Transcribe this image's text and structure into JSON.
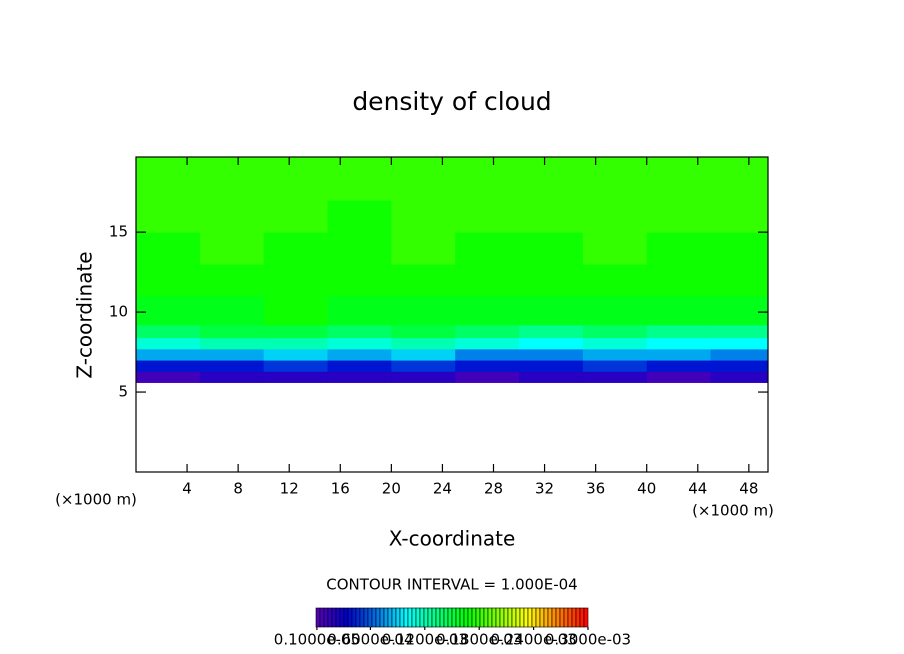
{
  "chart_data": {
    "type": "heatmap",
    "title": "density of cloud",
    "x_label": "X-coordinate",
    "y_label": "Z-coordinate",
    "x_unit": "(×1000 m)",
    "y_unit": "(×1000 m)",
    "contour_interval": "CONTOUR INTERVAL = 1.000E-04",
    "xlim": [
      0,
      49.5
    ],
    "ylim": [
      0,
      19.7
    ],
    "xticks": [
      4,
      8,
      12,
      16,
      20,
      24,
      28,
      32,
      36,
      40,
      44,
      48
    ],
    "yticks": [
      5,
      10,
      15
    ],
    "x_edges": [
      0,
      5,
      10,
      15,
      20,
      25,
      30,
      35,
      40,
      45,
      49.5
    ],
    "z_edges": [
      5.6,
      6.3,
      7,
      7.7,
      8.4,
      9.2,
      11,
      13,
      15,
      17,
      19.7
    ],
    "values": [
      [
        1e-05,
        2e-05,
        2e-05,
        2e-05,
        2e-05,
        1e-05,
        2e-05,
        2e-05,
        1e-05,
        2e-05
      ],
      [
        4e-05,
        4e-05,
        5e-05,
        4e-05,
        5e-05,
        4e-05,
        4e-05,
        5e-05,
        4e-05,
        4e-05
      ],
      [
        8e-05,
        8e-05,
        9e-05,
        8e-05,
        9e-05,
        7e-05,
        7e-05,
        8e-05,
        8e-05,
        7e-05
      ],
      [
        0.00011,
        0.00012,
        0.00012,
        0.00011,
        0.00012,
        0.00011,
        0.0001,
        0.00011,
        0.0001,
        0.0001
      ],
      [
        0.00014,
        0.00015,
        0.00015,
        0.00014,
        0.00015,
        0.00014,
        0.00013,
        0.00014,
        0.00013,
        0.00013
      ],
      [
        0.00016,
        0.00016,
        0.00017,
        0.00016,
        0.00016,
        0.00016,
        0.00016,
        0.00016,
        0.00016,
        0.00016
      ],
      [
        0.00017,
        0.00017,
        0.00017,
        0.00017,
        0.00017,
        0.00017,
        0.00017,
        0.00017,
        0.00017,
        0.00017
      ],
      [
        0.00017,
        0.00018,
        0.00017,
        0.00017,
        0.00018,
        0.00017,
        0.00017,
        0.00018,
        0.00017,
        0.00017
      ],
      [
        0.00018,
        0.00018,
        0.00018,
        0.00017,
        0.00018,
        0.00018,
        0.00018,
        0.00018,
        0.00018,
        0.00018
      ],
      [
        0.00018,
        0.00018,
        0.00018,
        0.00018,
        0.00018,
        0.00018,
        0.00018,
        0.00018,
        0.00018,
        0.00018
      ]
    ],
    "clim": [
      0,
      0.0003
    ],
    "colorbar_ticks": [
      {
        "value": 1e-06,
        "label": "0.1000e-05"
      },
      {
        "value": 6e-05,
        "label": "0.6000e-04"
      },
      {
        "value": 0.00012,
        "label": "0.1200e-03"
      },
      {
        "value": 0.00018,
        "label": "0.1800e-03"
      },
      {
        "value": 0.00024,
        "label": "0.2400e-03"
      },
      {
        "value": 0.0003,
        "label": "0.3000e-03"
      }
    ]
  }
}
